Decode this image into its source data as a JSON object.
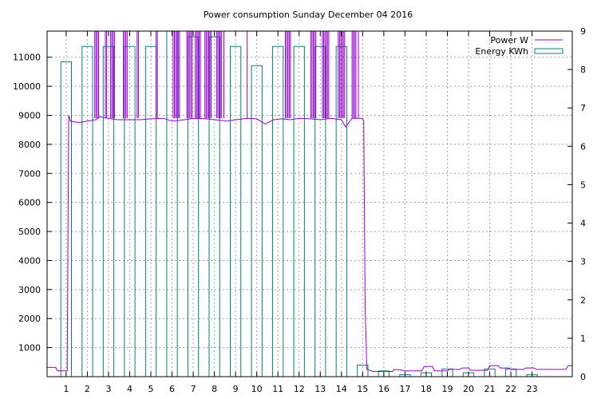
{
  "chart_data": {
    "type": "bar",
    "title": "Power consumption Sunday December 04 2016",
    "x_ticks": [
      "1",
      "2",
      "3",
      "4",
      "5",
      "6",
      "7",
      "8",
      "9",
      "10",
      "11",
      "12",
      "13",
      "14",
      "15",
      "16",
      "17",
      "18",
      "19",
      "20",
      "21",
      "22",
      "23"
    ],
    "xlim": [
      -0.9,
      23.9
    ],
    "y_left": {
      "ylim": [
        0,
        11900
      ],
      "ticks": [
        1000,
        2000,
        3000,
        4000,
        5000,
        6000,
        7000,
        8000,
        9000,
        10000,
        11000
      ]
    },
    "y_right": {
      "ylim": [
        0,
        9
      ],
      "ticks": [
        0,
        1,
        2,
        3,
        4,
        5,
        6,
        7,
        8,
        9
      ]
    },
    "grid": true,
    "legend": {
      "placement": "top-right"
    },
    "series": [
      {
        "name": "Power W",
        "axis": "left",
        "kind": "line",
        "color": "#9400d3",
        "points": [
          [
            -0.9,
            320
          ],
          [
            -0.5,
            320
          ],
          [
            -0.4,
            200
          ],
          [
            0.0,
            200
          ],
          [
            0.05,
            200
          ],
          [
            0.12,
            9000
          ],
          [
            0.2,
            8800
          ],
          [
            0.6,
            8750
          ],
          [
            1.0,
            8800
          ],
          [
            1.4,
            8850
          ],
          [
            1.6,
            8950
          ],
          [
            2.0,
            8900
          ],
          [
            2.4,
            8850
          ],
          [
            3.0,
            8850
          ],
          [
            3.5,
            8850
          ],
          [
            4.0,
            8880
          ],
          [
            4.6,
            8900
          ],
          [
            5.0,
            8800
          ],
          [
            5.6,
            8850
          ],
          [
            6.0,
            8900
          ],
          [
            6.6,
            8880
          ],
          [
            7.0,
            8850
          ],
          [
            7.6,
            8800
          ],
          [
            8.0,
            8850
          ],
          [
            8.6,
            8900
          ],
          [
            9.0,
            8880
          ],
          [
            9.4,
            8700
          ],
          [
            9.8,
            8850
          ],
          [
            10.2,
            8880
          ],
          [
            10.6,
            8850
          ],
          [
            11.0,
            8900
          ],
          [
            11.5,
            8880
          ],
          [
            12.0,
            8850
          ],
          [
            12.5,
            8900
          ],
          [
            13.0,
            8850
          ],
          [
            13.2,
            8600
          ],
          [
            13.5,
            8900
          ],
          [
            14.0,
            8900
          ],
          [
            14.05,
            8800
          ],
          [
            14.12,
            2400
          ],
          [
            14.2,
            250
          ],
          [
            14.5,
            180
          ],
          [
            15.0,
            180
          ],
          [
            15.4,
            180
          ],
          [
            15.5,
            250
          ],
          [
            15.9,
            220
          ],
          [
            16.0,
            200
          ],
          [
            16.8,
            200
          ],
          [
            16.9,
            350
          ],
          [
            17.3,
            350
          ],
          [
            17.4,
            200
          ],
          [
            18.0,
            200
          ],
          [
            18.1,
            250
          ],
          [
            18.6,
            250
          ],
          [
            18.7,
            300
          ],
          [
            19.0,
            300
          ],
          [
            19.1,
            220
          ],
          [
            19.8,
            220
          ],
          [
            19.9,
            220
          ],
          [
            20.0,
            380
          ],
          [
            20.4,
            380
          ],
          [
            20.5,
            300
          ],
          [
            20.9,
            300
          ],
          [
            21.0,
            250
          ],
          [
            21.6,
            250
          ],
          [
            21.7,
            300
          ],
          [
            22.1,
            300
          ],
          [
            22.2,
            250
          ],
          [
            22.9,
            250
          ],
          [
            23.0,
            250
          ],
          [
            23.6,
            250
          ],
          [
            23.7,
            380
          ],
          [
            23.9,
            380
          ]
        ],
        "spike_intervals": [
          [
            1.35,
            1.55
          ],
          [
            1.85,
            1.95
          ],
          [
            2.1,
            2.3
          ],
          [
            2.7,
            2.9
          ],
          [
            3.35,
            3.45
          ],
          [
            4.25,
            4.35
          ],
          [
            5.05,
            5.4
          ],
          [
            5.7,
            5.95
          ],
          [
            6.1,
            6.4
          ],
          [
            6.55,
            6.9
          ],
          [
            7.1,
            7.35
          ],
          [
            7.45,
            7.5
          ],
          [
            8.55,
            8.6
          ],
          [
            10.35,
            10.65
          ],
          [
            11.55,
            11.85
          ],
          [
            12.1,
            12.45
          ],
          [
            12.85,
            13.2
          ],
          [
            13.5,
            13.7
          ],
          [
            13.8,
            13.85
          ]
        ]
      },
      {
        "name": "Energy KWh",
        "axis": "right",
        "kind": "bar",
        "color": "#008080",
        "bars": [
          [
            0,
            8.2
          ],
          [
            1,
            8.6
          ],
          [
            2,
            8.6
          ],
          [
            3,
            8.6
          ],
          [
            4,
            8.6
          ],
          [
            5,
            9.0
          ],
          [
            6,
            8.85
          ],
          [
            7,
            8.85
          ],
          [
            8,
            8.6
          ],
          [
            9,
            8.1
          ],
          [
            10,
            8.6
          ],
          [
            11,
            8.6
          ],
          [
            12,
            8.6
          ],
          [
            13,
            8.6
          ],
          [
            14,
            0.3
          ],
          [
            15,
            0.15
          ],
          [
            16,
            0.05
          ],
          [
            17,
            0.1
          ],
          [
            18,
            0.2
          ],
          [
            19,
            0.1
          ],
          [
            20,
            0.2
          ],
          [
            21,
            0.2
          ],
          [
            22,
            0.05
          ]
        ]
      }
    ]
  }
}
